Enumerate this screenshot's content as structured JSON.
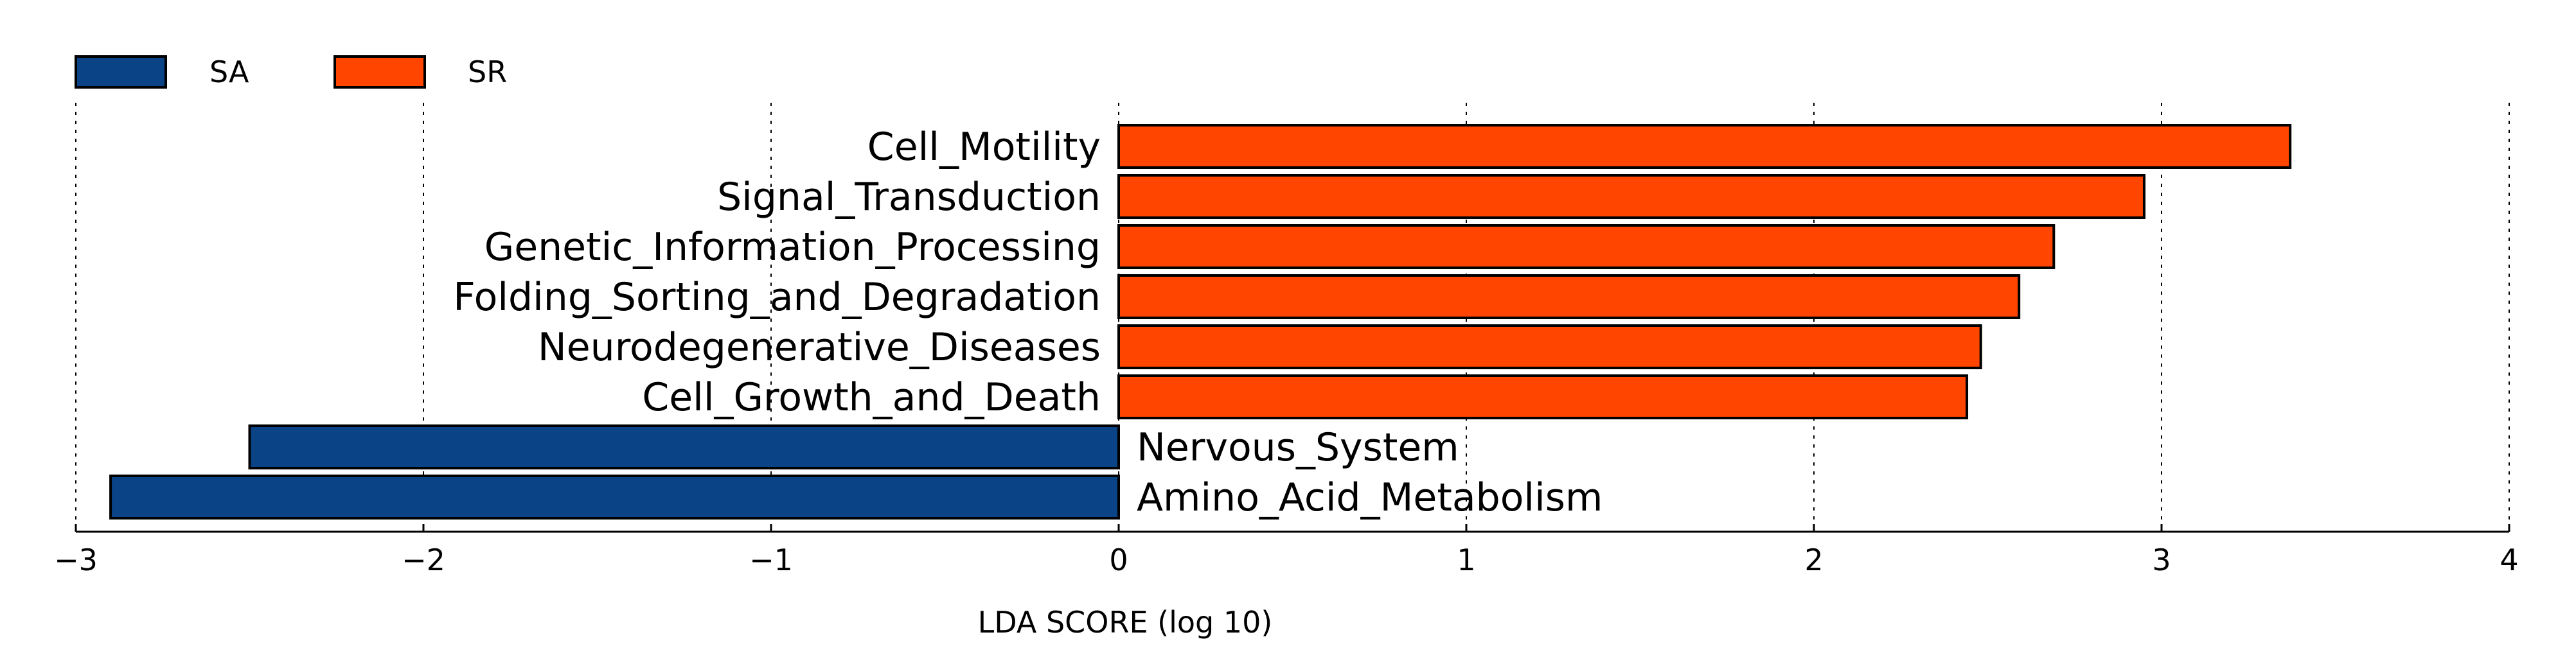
{
  "chart_data": {
    "type": "bar",
    "orientation": "horizontal",
    "xlabel": "LDA SCORE (log 10)",
    "xlim": [
      -3,
      4
    ],
    "xticks": [
      -3,
      -2,
      -1,
      0,
      1,
      2,
      3,
      4
    ],
    "xtick_labels": [
      "−3",
      "−2",
      "−1",
      "0",
      "1",
      "2",
      "3",
      "4"
    ],
    "grid": true,
    "legend_position": "top-left",
    "legend": [
      {
        "name": "SA",
        "color": "#0a4486"
      },
      {
        "name": "SR",
        "color": "#ff4500"
      }
    ],
    "bars": [
      {
        "label": "Cell_Motility",
        "value": 3.37,
        "group": "SR"
      },
      {
        "label": "Signal_Transduction",
        "value": 2.95,
        "group": "SR"
      },
      {
        "label": "Genetic_Information_Processing",
        "value": 2.69,
        "group": "SR"
      },
      {
        "label": "Folding_Sorting_and_Degradation",
        "value": 2.59,
        "group": "SR"
      },
      {
        "label": "Neurodegenerative_Diseases",
        "value": 2.48,
        "group": "SR"
      },
      {
        "label": "Cell_Growth_and_Death",
        "value": 2.44,
        "group": "SR"
      },
      {
        "label": "Nervous_System",
        "value": -2.5,
        "group": "SA"
      },
      {
        "label": "Amino_Acid_Metabolism",
        "value": -2.9,
        "group": "SA"
      }
    ]
  }
}
